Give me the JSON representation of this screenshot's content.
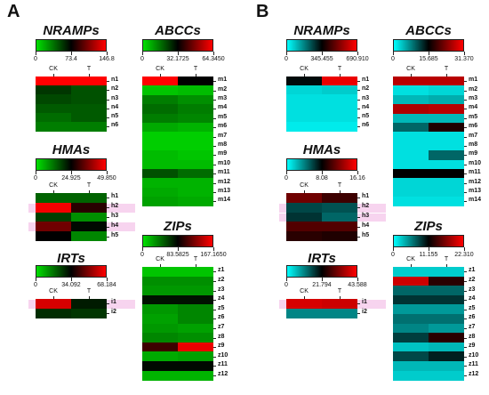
{
  "panels": [
    {
      "letter": "A",
      "scheme": "green-black-red",
      "colors": [
        "#00e000",
        "#000000",
        "#ff0000"
      ],
      "blocks": [
        {
          "name": "nramps",
          "title": "NRAMPs",
          "scale": [
            "0",
            "73.4",
            "146.8"
          ],
          "columns": [
            "CK",
            "T"
          ],
          "rows": [
            [
              "n1",
              1.0,
              1.0
            ],
            [
              "n2",
              0.38,
              0.32
            ],
            [
              "n3",
              0.34,
              0.32
            ],
            [
              "n4",
              0.3,
              0.3
            ],
            [
              "n5",
              0.26,
              0.3
            ],
            [
              "n6",
              0.22,
              0.22
            ]
          ],
          "highlight": []
        },
        {
          "name": "hmas",
          "title": "HMAs",
          "scale": [
            "0",
            "24.925",
            "49.850"
          ],
          "columns": [
            "CK",
            "T"
          ],
          "rows": [
            [
              "h1",
              0.28,
              0.28
            ],
            [
              "h2",
              0.98,
              0.58
            ],
            [
              "h3",
              0.36,
              0.18
            ],
            [
              "h4",
              0.72,
              0.48
            ],
            [
              "h5",
              0.5,
              0.2
            ]
          ],
          "highlight": [
            "h2",
            "h4"
          ]
        },
        {
          "name": "irts",
          "title": "IRTs",
          "scale": [
            "0",
            "34.092",
            "68.184"
          ],
          "columns": [
            "CK",
            "T"
          ],
          "rows": [
            [
              "i1",
              0.92,
              0.44
            ],
            [
              "i2",
              0.4,
              0.38
            ]
          ],
          "highlight": [
            "i1"
          ]
        },
        {
          "name": "abccs",
          "title": "ABCCs",
          "scale": [
            "0",
            "32.1725",
            "64.3450"
          ],
          "columns": [
            "CK",
            "T"
          ],
          "rows": [
            [
              "m1",
              1.0,
              0.5
            ],
            [
              "m2",
              0.06,
              0.08
            ],
            [
              "m3",
              0.22,
              0.18
            ],
            [
              "m4",
              0.26,
              0.22
            ],
            [
              "m5",
              0.22,
              0.2
            ],
            [
              "m6",
              0.12,
              0.1
            ],
            [
              "m7",
              0.04,
              0.04
            ],
            [
              "m8",
              0.04,
              0.04
            ],
            [
              "m9",
              0.08,
              0.06
            ],
            [
              "m10",
              0.08,
              0.08
            ],
            [
              "m11",
              0.32,
              0.26
            ],
            [
              "m12",
              0.1,
              0.1
            ],
            [
              "m13",
              0.12,
              0.1
            ],
            [
              "m14",
              0.14,
              0.12
            ]
          ],
          "highlight": []
        },
        {
          "name": "zips",
          "title": "ZIPs",
          "scale": [
            "0",
            "83.5825",
            "167.1650"
          ],
          "columns": [
            "CK",
            "T"
          ],
          "rows": [
            [
              "z1",
              0.06,
              0.06
            ],
            [
              "z2",
              0.18,
              0.18
            ],
            [
              "z3",
              0.16,
              0.16
            ],
            [
              "z4",
              0.46,
              0.46
            ],
            [
              "z5",
              0.16,
              0.2
            ],
            [
              "z6",
              0.14,
              0.2
            ],
            [
              "z7",
              0.16,
              0.14
            ],
            [
              "z8",
              0.2,
              0.18
            ],
            [
              "z9",
              0.62,
              0.96
            ],
            [
              "z10",
              0.12,
              0.14
            ],
            [
              "z11",
              0.48,
              0.48
            ],
            [
              "z12",
              0.1,
              0.1
            ]
          ],
          "highlight": []
        }
      ]
    },
    {
      "letter": "B",
      "scheme": "cyan-black-red",
      "colors": [
        "#00ffff",
        "#000000",
        "#ff0000"
      ],
      "blocks": [
        {
          "name": "nramps",
          "title": "NRAMPs",
          "scale": [
            "0",
            "345.455",
            "690.910"
          ],
          "columns": [
            "CK",
            "T"
          ],
          "rows": [
            [
              "n1",
              0.48,
              0.96
            ],
            [
              "n2",
              0.08,
              0.1
            ],
            [
              "n3",
              0.06,
              0.06
            ],
            [
              "n4",
              0.06,
              0.06
            ],
            [
              "n5",
              0.06,
              0.06
            ],
            [
              "n6",
              0.04,
              0.04
            ]
          ],
          "highlight": []
        },
        {
          "name": "hmas",
          "title": "HMAs",
          "scale": [
            "0",
            "8.08",
            "16.16"
          ],
          "columns": [
            "CK",
            "T"
          ],
          "rows": [
            [
              "h1",
              0.72,
              0.62
            ],
            [
              "h2",
              0.36,
              0.34
            ],
            [
              "h3",
              0.4,
              0.3
            ],
            [
              "h4",
              0.66,
              0.66
            ],
            [
              "h5",
              0.58,
              0.56
            ]
          ],
          "highlight": [
            "h2",
            "h3"
          ]
        },
        {
          "name": "irts",
          "title": "IRTs",
          "scale": [
            "0",
            "21.794",
            "43.588"
          ],
          "columns": [
            "CK",
            "T"
          ],
          "rows": [
            [
              "i1",
              0.92,
              0.9
            ],
            [
              "i2",
              0.24,
              0.24
            ]
          ],
          "highlight": [
            "i1"
          ]
        },
        {
          "name": "abccs",
          "title": "ABCCs",
          "scale": [
            "0",
            "15.685",
            "31.370"
          ],
          "columns": [
            "CK",
            "T"
          ],
          "rows": [
            [
              "m1",
              0.86,
              0.86
            ],
            [
              "m2",
              0.06,
              0.08
            ],
            [
              "m3",
              0.14,
              0.16
            ],
            [
              "m4",
              0.84,
              0.86
            ],
            [
              "m5",
              0.14,
              0.14
            ],
            [
              "m6",
              0.3,
              0.56
            ],
            [
              "m7",
              0.06,
              0.06
            ],
            [
              "m8",
              0.06,
              0.06
            ],
            [
              "m9",
              0.06,
              0.3
            ],
            [
              "m10",
              0.06,
              0.06
            ],
            [
              "m11",
              0.5,
              0.5
            ],
            [
              "m12",
              0.08,
              0.08
            ],
            [
              "m13",
              0.08,
              0.08
            ],
            [
              "m14",
              0.06,
              0.06
            ]
          ],
          "highlight": []
        },
        {
          "name": "zips",
          "title": "ZIPs",
          "scale": [
            "0",
            "11.155",
            "22.310"
          ],
          "columns": [
            "CK",
            "T"
          ],
          "rows": [
            [
              "z1",
              0.1,
              0.1
            ],
            [
              "z2",
              0.9,
              0.58
            ],
            [
              "z3",
              0.3,
              0.3
            ],
            [
              "z4",
              0.4,
              0.4
            ],
            [
              "z5",
              0.2,
              0.2
            ],
            [
              "z6",
              0.28,
              0.28
            ],
            [
              "z7",
              0.24,
              0.2
            ],
            [
              "z8",
              0.38,
              0.58
            ],
            [
              "z9",
              0.12,
              0.14
            ],
            [
              "z10",
              0.36,
              0.44
            ],
            [
              "z11",
              0.14,
              0.14
            ],
            [
              "z12",
              0.1,
              0.1
            ]
          ],
          "highlight": []
        }
      ]
    }
  ]
}
